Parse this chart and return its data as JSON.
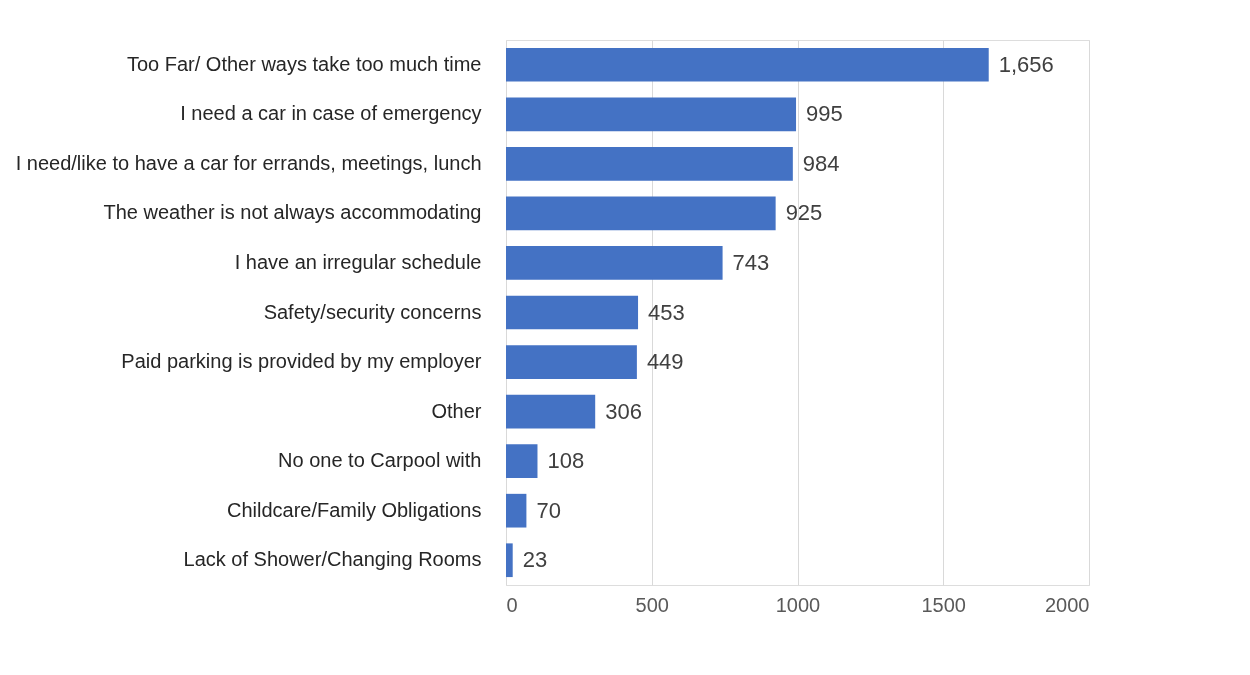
{
  "chart_data": {
    "type": "bar",
    "orientation": "horizontal",
    "categories": [
      "Too Far/ Other ways take too much time",
      "I need a car in case of emergency",
      "I need/like to have a car for errands, meetings, lunch",
      "The weather is not always accommodating",
      "I have an irregular schedule",
      "Safety/security concerns",
      "Paid parking is provided by my employer",
      "Other",
      "No one to Carpool with",
      "Childcare/Family Obligations",
      "Lack of Shower/Changing Rooms"
    ],
    "values": [
      1656,
      995,
      984,
      925,
      743,
      453,
      449,
      306,
      108,
      70,
      23
    ],
    "value_labels": [
      "1,656",
      "995",
      "984",
      "925",
      "743",
      "453",
      "449",
      "306",
      "108",
      "70",
      "23"
    ],
    "color": "#4472c4",
    "xlim": [
      0,
      2000
    ],
    "xticks": [
      0,
      500,
      1000,
      1500,
      2000
    ],
    "grid": "x"
  }
}
